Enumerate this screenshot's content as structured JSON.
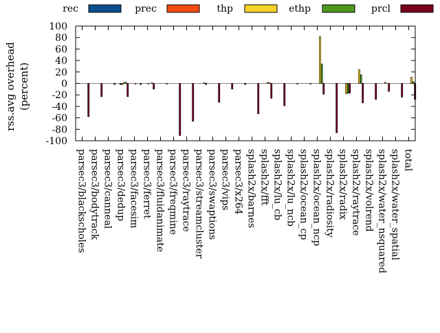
{
  "colors": {
    "rec": "#0b4f8f",
    "prec": "#f24a13",
    "thp": "#f6d328",
    "ethp": "#4e9a1f",
    "prcl": "#7a0022"
  },
  "chart_data": {
    "type": "bar",
    "title": "",
    "xlabel": "",
    "ylabel": "rss.avg overhead (percent)",
    "ylabel_lines": [
      "rss.avg overhead",
      "(percent)"
    ],
    "ylim": [
      -100,
      100
    ],
    "yticks": [
      100,
      80,
      60,
      40,
      20,
      0,
      -20,
      -40,
      -60,
      -80,
      -100
    ],
    "yticks_labels": [
      "100",
      "80",
      "60",
      "40",
      "20",
      "0",
      "-20",
      "-40",
      "-60",
      "-80",
      "-100"
    ],
    "legend_position": "top",
    "categories": [
      "parsec3/blackscholes",
      "parsec3/bodytrack",
      "parsec3/canneal",
      "parsec3/dedup",
      "parsec3/facesim",
      "parsec3/ferret",
      "parsec3/fluidanimate",
      "parsec3/freqmine",
      "parsec3/raytrace",
      "parsec3/streamcluster",
      "parsec3/swaptions",
      "parsec3/vips",
      "parsec3/x264",
      "splash2x/barnes",
      "splash2x/fft",
      "splash2x/lu_cb",
      "splash2x/lu_ncb",
      "splash2x/ocean_cp",
      "splash2x/ocean_ncp",
      "splash2x/radiosity",
      "splash2x/radix",
      "splash2x/raytrace",
      "splash2x/volrend",
      "splash2x/water_nsquared",
      "splash2x/water_spatial",
      "total"
    ],
    "series": [
      {
        "name": "rec",
        "values": [
          0,
          0,
          0,
          -2,
          0,
          0,
          0,
          0,
          0,
          0,
          0,
          0,
          0,
          0,
          0,
          0,
          0,
          0,
          0,
          0,
          0,
          0,
          0,
          0,
          0,
          0
        ]
      },
      {
        "name": "prec",
        "values": [
          0,
          0,
          0,
          -2,
          -1,
          -1,
          0,
          0,
          0,
          0,
          0,
          0,
          0,
          0,
          0,
          0,
          0,
          0,
          0,
          0,
          0,
          0,
          0,
          0,
          0,
          0
        ]
      },
      {
        "name": "thp",
        "values": [
          0,
          0,
          0,
          2,
          0,
          0,
          0,
          0,
          0,
          0,
          0,
          0,
          0,
          0,
          2,
          0,
          0,
          0,
          82,
          0,
          -18,
          24,
          0,
          2,
          0,
          11
        ]
      },
      {
        "name": "ethp",
        "values": [
          0,
          0,
          0,
          2,
          0,
          1,
          0,
          0,
          0,
          1,
          0,
          0,
          0,
          0,
          1,
          0,
          0,
          0,
          34,
          0,
          -17,
          15,
          0,
          0,
          0,
          3
        ]
      },
      {
        "name": "prcl",
        "values": [
          -58,
          -23,
          -2,
          -23,
          -2,
          -10,
          -1,
          -91,
          -66,
          -2,
          -33,
          -10,
          -2,
          -53,
          -26,
          -39,
          -1,
          -1,
          -19,
          -86,
          -17,
          -34,
          -28,
          -14,
          -24,
          -28
        ]
      }
    ]
  }
}
